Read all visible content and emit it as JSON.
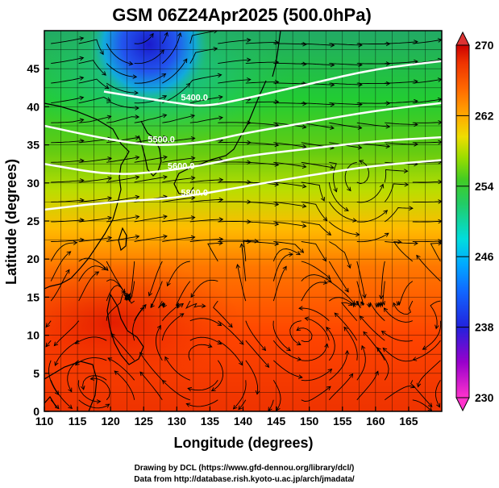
{
  "title": "GSM 06Z24Apr2025 (500.0hPa)",
  "xlabel": "Longitude (degrees)",
  "ylabel": "Latitude  (degrees)",
  "credits": [
    "Drawing by DCL (https://www.gfd-dennou.org/library/dcl/)",
    "Data from http://database.rish.kyoto-u.ac.jp/arch/jmadata/"
  ],
  "chart_data": {
    "type": "heatmap",
    "title": "GSM 06Z24Apr2025 (500.0hPa)",
    "xlabel": "Longitude (degrees)",
    "ylabel": "Latitude  (degrees)",
    "xlim": [
      110,
      170
    ],
    "ylim": [
      0,
      50
    ],
    "xticks": [
      "110",
      "115",
      "120",
      "125",
      "130",
      "135",
      "140",
      "145",
      "150",
      "155",
      "160",
      "165"
    ],
    "yticks": [
      "0",
      "5",
      "10",
      "15",
      "20",
      "25",
      "30",
      "35",
      "40",
      "45"
    ],
    "grid": true,
    "colorbar": {
      "ticks": [
        "230",
        "238",
        "246",
        "254",
        "262",
        "270"
      ],
      "vmin": 230,
      "vmax": 270,
      "colors": [
        "#ff33cc",
        "#9900cc",
        "#2222dd",
        "#1166ff",
        "#00aaff",
        "#00dddd",
        "#22cc66",
        "#44cc22",
        "#99dd00",
        "#eedd00",
        "#ffaa00",
        "#ff6600",
        "#ee3300",
        "#cc0000"
      ]
    },
    "contours": [
      {
        "label": "5400.0",
        "points": [
          [
            119,
            42
          ],
          [
            126,
            41
          ],
          [
            130,
            40.5
          ],
          [
            134,
            40
          ],
          [
            140,
            41
          ],
          [
            150,
            43
          ],
          [
            160,
            45
          ],
          [
            170,
            46
          ]
        ]
      },
      {
        "label": "5500.0",
        "points": [
          [
            110,
            37.5
          ],
          [
            118,
            36
          ],
          [
            125,
            35
          ],
          [
            130,
            35
          ],
          [
            135,
            35.5
          ],
          [
            140,
            36.5
          ],
          [
            150,
            38
          ],
          [
            160,
            39.5
          ],
          [
            170,
            40.5
          ]
        ]
      },
      {
        "label": "5600.0",
        "points": [
          [
            110,
            32.5
          ],
          [
            120,
            31
          ],
          [
            128,
            31.5
          ],
          [
            135,
            32.5
          ],
          [
            140,
            33.5
          ],
          [
            150,
            34.5
          ],
          [
            160,
            35.5
          ],
          [
            170,
            36
          ]
        ]
      },
      {
        "label": "5800.0",
        "points": [
          [
            110,
            26.5
          ],
          [
            120,
            27.5
          ],
          [
            130,
            28
          ],
          [
            140,
            29.5
          ],
          [
            150,
            31
          ],
          [
            160,
            32.3
          ],
          [
            170,
            33
          ]
        ]
      }
    ]
  },
  "colors": {
    "contour": "#ffffff",
    "streamline": "#000000",
    "coast": "#000000"
  }
}
